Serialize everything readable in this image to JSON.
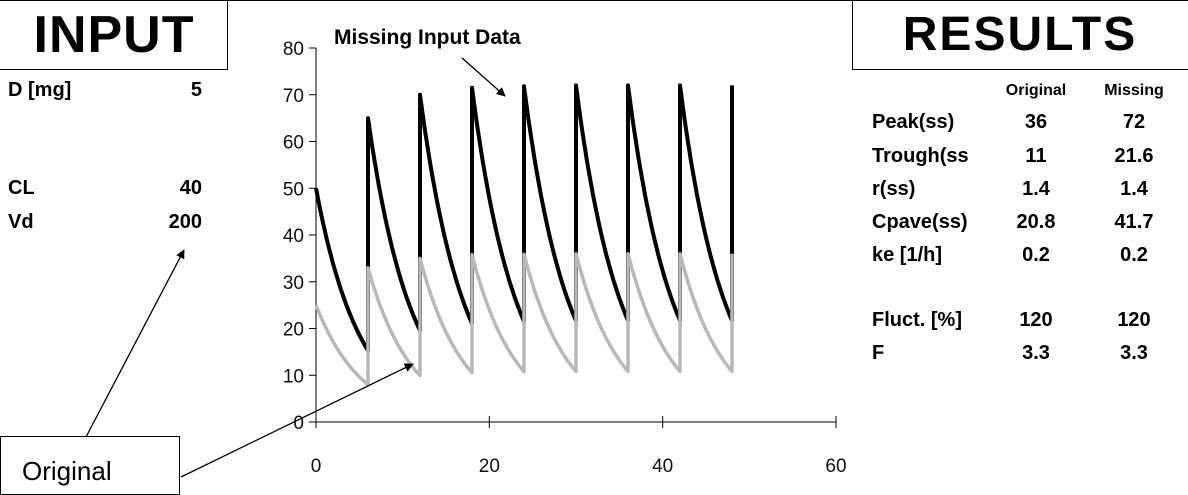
{
  "input": {
    "title": "INPUT",
    "params": [
      {
        "name": "D [mg]",
        "value": "5"
      },
      {
        "name": "CL",
        "value": "40"
      },
      {
        "name": "Vd",
        "value": "200"
      }
    ]
  },
  "results": {
    "title": "RESULTS",
    "col_original": "Original",
    "col_missing": "Missing",
    "rows": [
      {
        "name": "Peak(ss)",
        "original": "36",
        "missing": "72"
      },
      {
        "name": "Trough(ss",
        "original": "11",
        "missing": "21.6"
      },
      {
        "name": "r(ss)",
        "original": "1.4",
        "missing": "1.4"
      },
      {
        "name": "Cpave(ss)",
        "original": "20.8",
        "missing": "41.7"
      },
      {
        "name": "ke [1/h]",
        "original": "0.2",
        "missing": "0.2"
      },
      {
        "name": "Fluct. [%]",
        "original": "120",
        "missing": "120"
      },
      {
        "name": "F",
        "original": "3.3",
        "missing": "3.3"
      }
    ]
  },
  "callout": {
    "label": "Original"
  },
  "chart_data": {
    "type": "line",
    "annotation": "Missing Input Data",
    "xlim": [
      0,
      60
    ],
    "ylim": [
      0,
      80
    ],
    "xticks": [
      "0",
      "20",
      "40",
      "60"
    ],
    "yticks": [
      "0",
      "10",
      "20",
      "30",
      "40",
      "50",
      "60",
      "70",
      "80"
    ],
    "dose_interval": 6,
    "k": 0.2,
    "x_end": 48,
    "series": [
      {
        "color": "#000000",
        "start": 50,
        "peaks": [
          65,
          70,
          71.5,
          71.8,
          72,
          72,
          72,
          72
        ],
        "trough_first": 15.3
      },
      {
        "color": "#b8b8b8",
        "start": 25,
        "peaks": [
          33,
          35,
          35.8,
          35.9,
          36,
          36,
          36,
          36
        ],
        "trough_first": 8
      }
    ]
  }
}
